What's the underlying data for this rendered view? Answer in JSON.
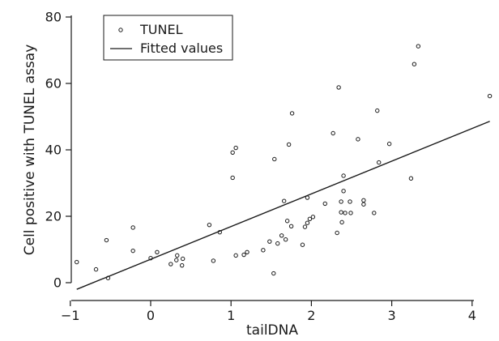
{
  "chart_data": {
    "type": "scatter",
    "title": "",
    "xlabel": "tailDNA",
    "ylabel": "Cell positive with TUNEL assay",
    "xlim": [
      -1.1,
      4.3
    ],
    "ylim": [
      -5,
      80
    ],
    "xticks": [
      -1,
      0,
      1,
      2,
      3,
      4
    ],
    "xtick_labels": [
      "−1",
      "0",
      "1",
      "2",
      "3",
      "4"
    ],
    "yticks": [
      0,
      20,
      40,
      60,
      80
    ],
    "ytick_labels": [
      "0",
      "20",
      "40",
      "60",
      "80"
    ],
    "grid": false,
    "legend": {
      "position": "top-left",
      "entries": [
        {
          "label": "TUNEL",
          "marker": "circle"
        },
        {
          "label": "Fitted values",
          "marker": "line"
        }
      ]
    },
    "series": [
      {
        "name": "TUNEL",
        "kind": "scatter",
        "points": [
          [
            -0.92,
            6.2
          ],
          [
            -0.68,
            4.0
          ],
          [
            -0.55,
            12.8
          ],
          [
            -0.53,
            1.4
          ],
          [
            -0.22,
            16.6
          ],
          [
            -0.22,
            9.6
          ],
          [
            0.0,
            7.4
          ],
          [
            0.08,
            9.2
          ],
          [
            0.25,
            5.6
          ],
          [
            0.32,
            6.8
          ],
          [
            0.33,
            8.2
          ],
          [
            0.39,
            5.2
          ],
          [
            0.4,
            7.2
          ],
          [
            0.73,
            17.4
          ],
          [
            0.78,
            6.6
          ],
          [
            0.86,
            15.2
          ],
          [
            1.02,
            39.2
          ],
          [
            1.02,
            31.6
          ],
          [
            1.06,
            40.6
          ],
          [
            1.06,
            8.2
          ],
          [
            1.16,
            8.4
          ],
          [
            1.2,
            9.2
          ],
          [
            1.4,
            9.8
          ],
          [
            1.48,
            12.4
          ],
          [
            1.53,
            2.8
          ],
          [
            1.54,
            37.2
          ],
          [
            1.58,
            11.8
          ],
          [
            1.63,
            14.2
          ],
          [
            1.66,
            24.6
          ],
          [
            1.68,
            13.0
          ],
          [
            1.7,
            18.6
          ],
          [
            1.72,
            41.6
          ],
          [
            1.75,
            17.0
          ],
          [
            1.76,
            51.0
          ],
          [
            1.89,
            11.4
          ],
          [
            1.92,
            16.8
          ],
          [
            1.95,
            25.6
          ],
          [
            1.95,
            18.0
          ],
          [
            1.98,
            19.2
          ],
          [
            2.02,
            19.8
          ],
          [
            2.17,
            23.8
          ],
          [
            2.27,
            45.0
          ],
          [
            2.32,
            15.0
          ],
          [
            2.34,
            58.8
          ],
          [
            2.37,
            24.4
          ],
          [
            2.37,
            21.2
          ],
          [
            2.38,
            18.2
          ],
          [
            2.4,
            27.6
          ],
          [
            2.4,
            32.2
          ],
          [
            2.42,
            21.0
          ],
          [
            2.48,
            24.4
          ],
          [
            2.49,
            21.0
          ],
          [
            2.58,
            43.2
          ],
          [
            2.65,
            24.8
          ],
          [
            2.65,
            23.6
          ],
          [
            2.78,
            21.0
          ],
          [
            2.82,
            51.8
          ],
          [
            2.84,
            36.2
          ],
          [
            2.97,
            41.8
          ],
          [
            3.24,
            31.4
          ],
          [
            3.28,
            65.8
          ],
          [
            3.33,
            71.2
          ],
          [
            4.22,
            56.2
          ]
        ]
      },
      {
        "name": "Fitted values",
        "kind": "line",
        "points": [
          [
            -0.92,
            -2.0
          ],
          [
            4.22,
            48.6
          ]
        ]
      }
    ]
  },
  "colors": {
    "ink": "#1a1a1a",
    "background": "#ffffff"
  }
}
